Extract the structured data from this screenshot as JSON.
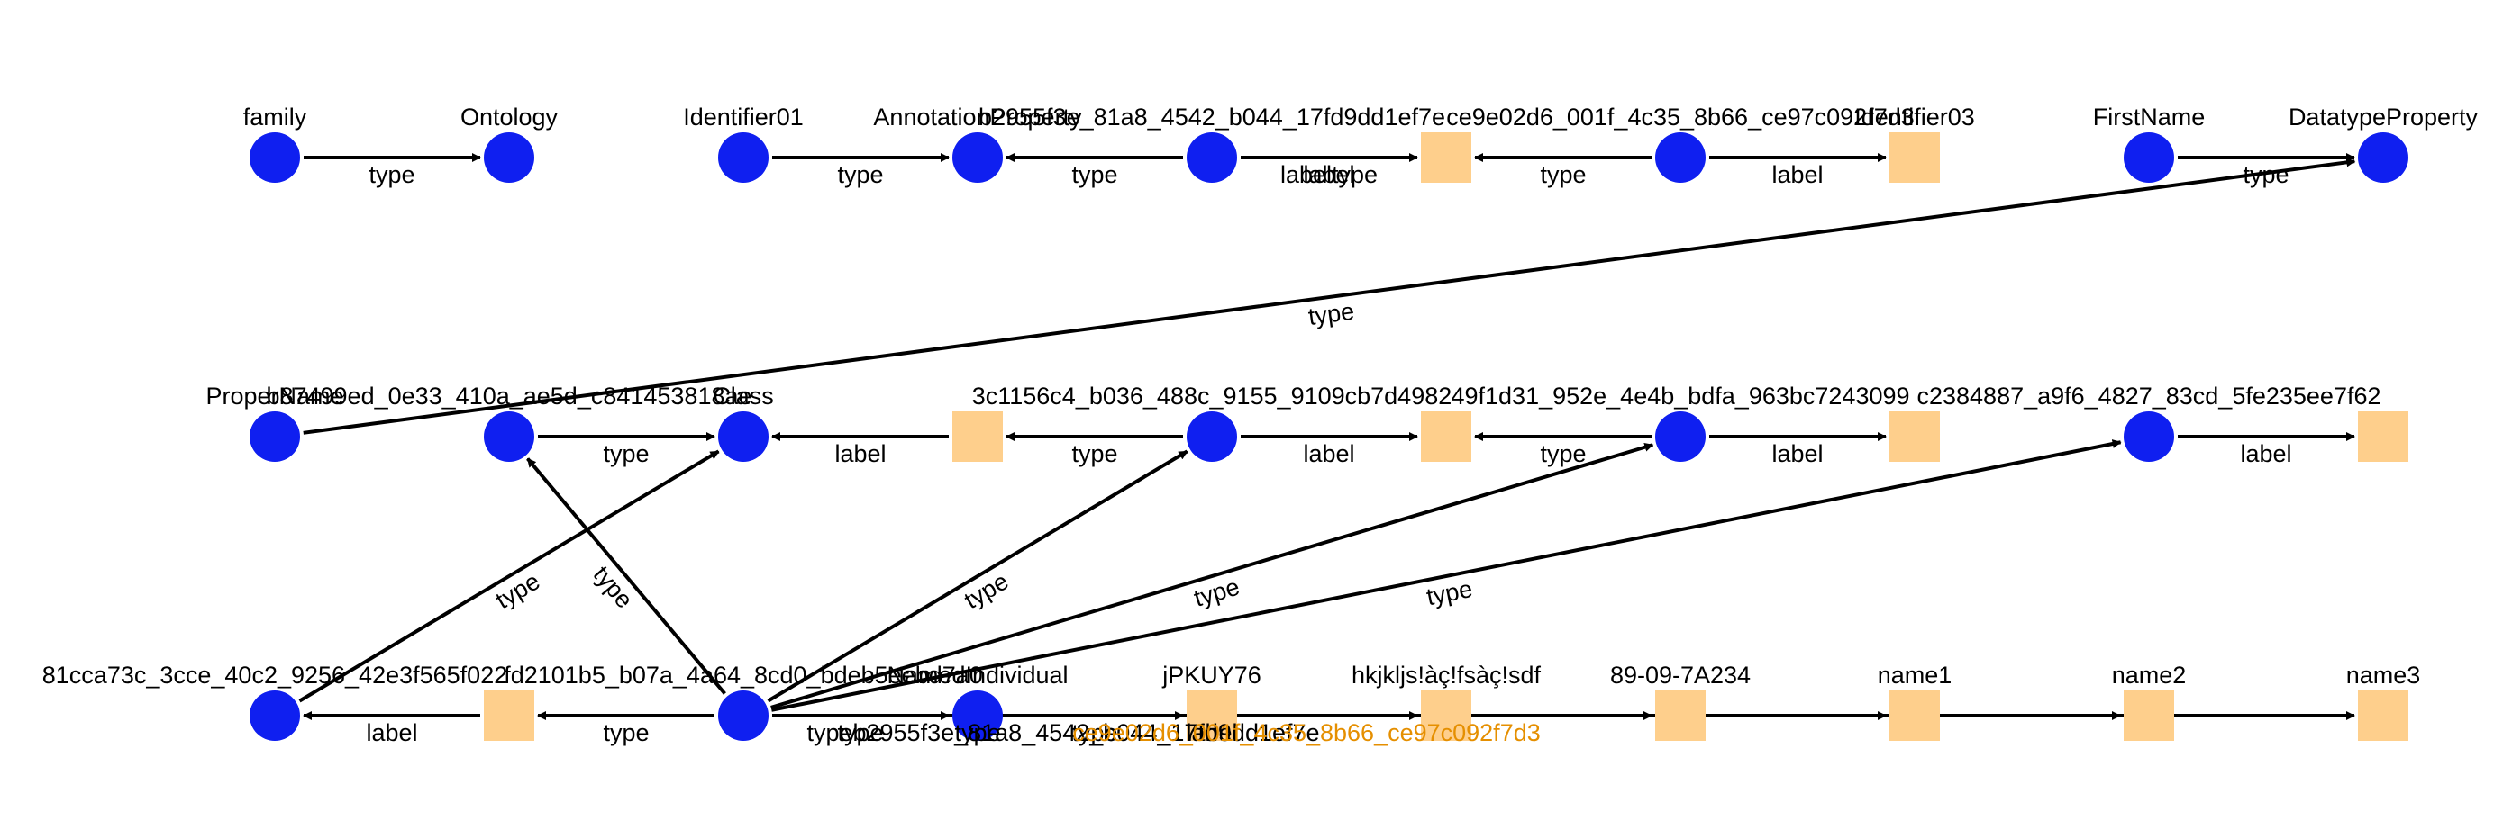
{
  "colors": {
    "resource_node": "#0f1ff0",
    "literal_node": "#fecf8c",
    "edge": "#000000",
    "literal_text": "#e58f00"
  },
  "graph": {
    "nodes": [
      {
        "id": "family",
        "label": "family",
        "kind": "resource"
      },
      {
        "id": "ontology",
        "label": "Ontology",
        "kind": "resource"
      },
      {
        "id": "identifier01",
        "label": "Identifier01",
        "kind": "resource"
      },
      {
        "id": "annotationproperty",
        "label": "AnnotationProperty",
        "kind": "resource"
      },
      {
        "id": "b2955f3e",
        "label": "b2955f3e_81a8_4542_b044_17fd9dd1ef7e",
        "kind": "resource"
      },
      {
        "id": "lit_top1",
        "label": "",
        "kind": "literal"
      },
      {
        "id": "ce9e02d6",
        "label": "ce9e02d6_001f_4c35_8b66_ce97c092f7d3",
        "kind": "resource"
      },
      {
        "id": "identifier03",
        "label": "Identifier03",
        "kind": "literal"
      },
      {
        "id": "firstname",
        "label": "FirstName",
        "kind": "resource"
      },
      {
        "id": "datatypeproperty",
        "label": "DatatypeProperty",
        "kind": "resource"
      },
      {
        "id": "propername",
        "label": "ProperName",
        "kind": "resource"
      },
      {
        "id": "b87499ed",
        "label": "b87499ed_0e33_410a_ae5d_c841453818ae",
        "kind": "resource"
      },
      {
        "id": "class",
        "label": "Class",
        "kind": "resource"
      },
      {
        "id": "lit_mid1",
        "label": "",
        "kind": "literal"
      },
      {
        "id": "3c1156c4",
        "label": "3c1156c4_b036_488c_9155_9109cb7d4982",
        "kind": "resource"
      },
      {
        "id": "lit_mid2",
        "label": "",
        "kind": "literal"
      },
      {
        "id": "49f1d31",
        "label": "49f1d31_952e_4e4b_bdfa_963bc7243099",
        "kind": "resource"
      },
      {
        "id": "lit_mid3",
        "label": "",
        "kind": "literal"
      },
      {
        "id": "c2384887",
        "label": "c2384887_a9f6_4827_83cd_5fe235ee7f62",
        "kind": "resource"
      },
      {
        "id": "lit_mid4",
        "label": "",
        "kind": "literal"
      },
      {
        "id": "81cca73c",
        "label": "81cca73c_3cce_40c2_9256_42e3f565f022",
        "kind": "resource"
      },
      {
        "id": "lit_bot1",
        "label": "",
        "kind": "literal"
      },
      {
        "id": "fd2101b5",
        "label": "fd2101b5_b07a_4a64_8cd0_bdeb5eebd7a0",
        "kind": "resource"
      },
      {
        "id": "namedindividual",
        "label": "NamedIndividual",
        "kind": "resource"
      },
      {
        "id": "jpkuy76",
        "label": "jPKUY76",
        "kind": "literal"
      },
      {
        "id": "hkjkljs",
        "label": "hkjkljs!àç!fsàç!sdf",
        "kind": "literal"
      },
      {
        "id": "d890907",
        "label": "89-09-7A234",
        "kind": "literal"
      },
      {
        "id": "name1",
        "label": "name1",
        "kind": "literal"
      },
      {
        "id": "name2",
        "label": "name2",
        "kind": "literal"
      },
      {
        "id": "name3",
        "label": "name3",
        "kind": "literal"
      }
    ],
    "edges": [
      {
        "from": "family",
        "to": "ontology",
        "label": "type"
      },
      {
        "from": "identifier01",
        "to": "annotationproperty",
        "label": "type"
      },
      {
        "from": "b2955f3e",
        "to": "annotationproperty",
        "label": "type"
      },
      {
        "from": "b2955f3e",
        "to": "lit_top1",
        "label": "label"
      },
      {
        "from": "ce9e02d6",
        "to": "lit_top1",
        "label": "type"
      },
      {
        "from": "ce9e02d6",
        "to": "identifier03",
        "label": "label"
      },
      {
        "from": "firstname",
        "to": "datatypeproperty",
        "label": "type"
      },
      {
        "from": "propername",
        "to": "datatypeproperty",
        "label": "type"
      },
      {
        "from": "b87499ed",
        "to": "class",
        "label": "type"
      },
      {
        "from": "lit_mid1",
        "to": "class",
        "label": "label"
      },
      {
        "from": "3c1156c4",
        "to": "lit_mid1",
        "label": "type"
      },
      {
        "from": "3c1156c4",
        "to": "lit_mid2",
        "label": "label"
      },
      {
        "from": "49f1d31",
        "to": "lit_mid2",
        "label": "type"
      },
      {
        "from": "49f1d31",
        "to": "lit_mid3",
        "label": "label"
      },
      {
        "from": "c2384887",
        "to": "lit_mid4",
        "label": "label"
      },
      {
        "from": "81cca73c",
        "to": "class",
        "label": "type"
      },
      {
        "from": "lit_bot1",
        "to": "81cca73c",
        "label": "label"
      },
      {
        "from": "fd2101b5",
        "to": "lit_bot1",
        "label": "type"
      },
      {
        "from": "fd2101b5",
        "to": "b87499ed",
        "label": "type"
      },
      {
        "from": "fd2101b5",
        "to": "3c1156c4",
        "label": "type"
      },
      {
        "from": "fd2101b5",
        "to": "49f1d31",
        "label": "type"
      },
      {
        "from": "fd2101b5",
        "to": "c2384887",
        "label": "type"
      },
      {
        "from": "fd2101b5",
        "to": "namedindividual",
        "label": "type"
      },
      {
        "from": "fd2101b5",
        "to": "jpkuy76",
        "label": "type"
      },
      {
        "from": "fd2101b5",
        "to": "hkjkljs",
        "label": "type"
      },
      {
        "from": "fd2101b5",
        "to": "d890907",
        "label": "label"
      },
      {
        "from": "fd2101b5",
        "to": "name1",
        "label": ""
      },
      {
        "from": "fd2101b5",
        "to": "name2",
        "label": ""
      },
      {
        "from": "fd2101b5",
        "to": "name3",
        "label": ""
      }
    ],
    "overlap_texts": {
      "top_overlap_edge_labels": "labeltype",
      "bottom_overlap_edge_labels": "typeb2955f3e_81a8_4542_b044_17fd9dd1ef7e",
      "bottom_overlap_literal": "ce9e02d6_001f_4c35_8b66_ce97c092f7d3"
    }
  }
}
